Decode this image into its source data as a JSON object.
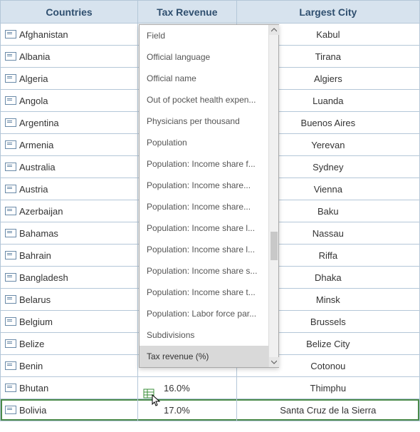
{
  "headers": {
    "c1": "Countries",
    "c2": "Tax Revenue",
    "c3": "Largest City"
  },
  "rows": [
    {
      "country": "Afghanistan",
      "city": "Kabul"
    },
    {
      "country": "Albania",
      "city": "Tirana"
    },
    {
      "country": "Algeria",
      "city": "Algiers"
    },
    {
      "country": "Angola",
      "city": "Luanda"
    },
    {
      "country": "Argentina",
      "city": "Buenos Aires"
    },
    {
      "country": "Armenia",
      "city": "Yerevan"
    },
    {
      "country": "Australia",
      "city": "Sydney"
    },
    {
      "country": "Austria",
      "city": "Vienna"
    },
    {
      "country": "Azerbaijan",
      "city": "Baku"
    },
    {
      "country": "Bahamas",
      "city": "Nassau"
    },
    {
      "country": "Bahrain",
      "city": "Riffa"
    },
    {
      "country": "Bangladesh",
      "city": "Dhaka"
    },
    {
      "country": "Belarus",
      "city": "Minsk"
    },
    {
      "country": "Belgium",
      "city": "Brussels"
    },
    {
      "country": "Belize",
      "city": "Belize City"
    },
    {
      "country": "Benin",
      "city": "Cotonou"
    },
    {
      "country": "Bhutan",
      "tax": "16.0%",
      "city": "Thimphu"
    },
    {
      "country": "Bolivia",
      "tax": "17.0%",
      "city": "Santa Cruz de la Sierra",
      "selected": true
    }
  ],
  "dropdown": {
    "items": [
      "Field",
      "Official language",
      "Official name",
      "Out of pocket health expen...",
      "Physicians per thousand",
      "Population",
      "Population: Income share f...",
      "Population: Income share...",
      "Population: Income share...",
      "Population: Income share l...",
      "Population: Income share l...",
      "Population: Income share s...",
      "Population: Income share t...",
      "Population: Labor force par...",
      "Subdivisions",
      "Tax revenue (%)"
    ],
    "highlightIndex": 15
  }
}
